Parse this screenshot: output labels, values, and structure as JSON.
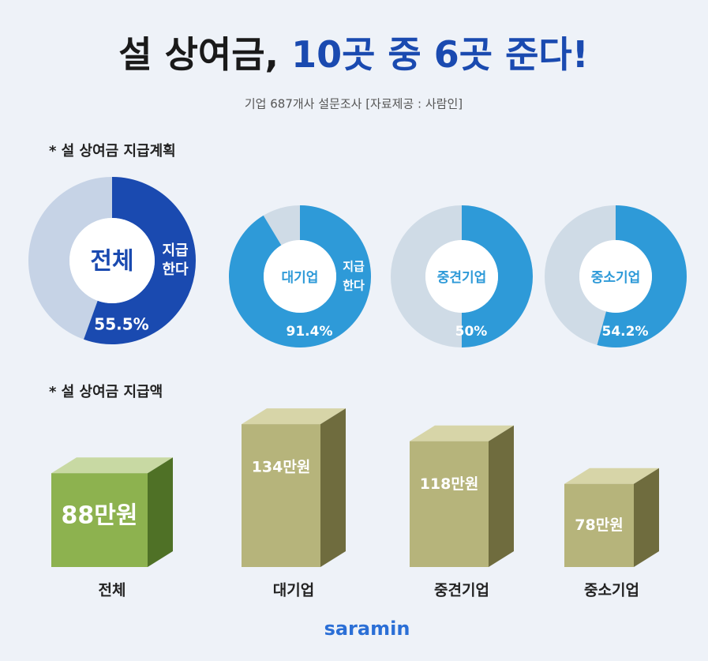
{
  "header": {
    "title_black": "설 상여금,",
    "title_blue": "10곳 중 6곳 준다!",
    "subtitle": "기업 687개사 설문조사  [자료제공 : 사람인]"
  },
  "sections": [
    "* 설 상여금 지급계획",
    "* 설 상여금 지급액"
  ],
  "chart_data": [
    {
      "type": "pie",
      "label": "전체",
      "annotation": [
        "지급",
        "한다"
      ],
      "values": [
        55.5
      ],
      "value_labels": [
        "55.5%"
      ],
      "color": "#1a4ab0"
    },
    {
      "type": "pie",
      "label": "대기업",
      "annotation": [
        "지급",
        "한다"
      ],
      "values": [
        91.4
      ],
      "value_labels": [
        "91.4%"
      ],
      "color": "#2e9ad8"
    },
    {
      "type": "pie",
      "label": "중견기업",
      "values": [
        50
      ],
      "value_labels": [
        "50%"
      ],
      "color": "#2e9ad8"
    },
    {
      "type": "pie",
      "label": "중소기업",
      "values": [
        54.2
      ],
      "value_labels": [
        "54.2%"
      ],
      "color": "#2e9ad8"
    },
    {
      "type": "bar",
      "categories": [
        "전체",
        "대기업",
        "중견기업",
        "중소기업"
      ],
      "values": [
        88,
        134,
        118,
        78
      ],
      "value_labels": [
        "88만원",
        "134만원",
        "118만원",
        "78만원"
      ],
      "colors": [
        "#8db24f",
        "#b6b47b",
        "#b6b47b",
        "#b6b47b"
      ]
    }
  ],
  "footer": {
    "logo": "saramin"
  }
}
